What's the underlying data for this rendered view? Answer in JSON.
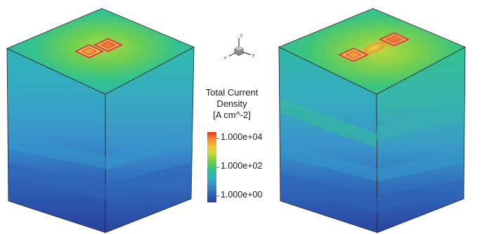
{
  "figure": {
    "panels": [
      {
        "id": "left",
        "pad_spacing": "adjacent",
        "pads": 2
      },
      {
        "id": "right",
        "pad_spacing": "separated",
        "pads": 2
      }
    ],
    "colormap": [
      "#2a3e9a",
      "#2f63b8",
      "#3a90cc",
      "#2fb3b8",
      "#34c28e",
      "#6ad04c",
      "#c6d93a",
      "#f1c232",
      "#f08a2c",
      "#e23222"
    ],
    "axes_triad": {
      "z": "z",
      "x": "x",
      "y": "y"
    }
  },
  "legend": {
    "title_lines": [
      "Total Current",
      "Density",
      "[A cm^-2]"
    ],
    "ticks": [
      "1.000e+04",
      "1.000e+02",
      "1.000e+00"
    ],
    "scale": "log"
  }
}
